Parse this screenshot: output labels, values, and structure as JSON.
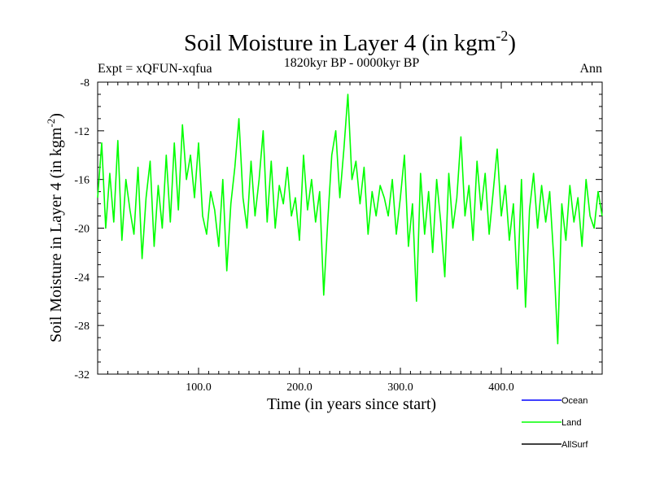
{
  "chart_data": {
    "type": "line",
    "title": "Soil Moisture in Layer 4 (in kgm",
    "title_superscript": "-2",
    "title_suffix": ")",
    "subtitle": "1820kyr BP - 0000kyr BP",
    "experiment_label": "Expt = xQFUN-xqfua",
    "season_label": "Ann",
    "xlabel": "Time (in years since start)",
    "ylabel": "Soil Moisture in Layer 4 (in kgm",
    "ylabel_superscript": "-2",
    "ylabel_suffix": ")",
    "xlim": [
      0,
      500
    ],
    "ylim": [
      -32,
      -8
    ],
    "xticks": [
      100,
      200,
      300,
      400
    ],
    "xtick_labels": [
      "100.0",
      "200.0",
      "300.0",
      "400.0"
    ],
    "yticks": [
      -32,
      -28,
      -24,
      -20,
      -16,
      -12,
      -8
    ],
    "ytick_labels": [
      "-32",
      "-28",
      "-24",
      "-20",
      "-16",
      "-12",
      "-8"
    ],
    "legend_position": "bottom-right",
    "series": [
      {
        "name": "Ocean",
        "color": "#0000ff",
        "x": [],
        "values": []
      },
      {
        "name": "Land",
        "color": "#00ff00",
        "x": [
          0,
          4,
          8,
          12,
          16,
          20,
          24,
          28,
          32,
          36,
          40,
          44,
          48,
          52,
          56,
          60,
          64,
          68,
          72,
          76,
          80,
          84,
          88,
          92,
          96,
          100,
          104,
          108,
          112,
          116,
          120,
          124,
          128,
          132,
          136,
          140,
          144,
          148,
          152,
          156,
          160,
          164,
          168,
          172,
          176,
          180,
          184,
          188,
          192,
          196,
          200,
          204,
          208,
          212,
          216,
          220,
          224,
          228,
          232,
          236,
          240,
          244,
          248,
          252,
          256,
          260,
          264,
          268,
          272,
          276,
          280,
          284,
          288,
          292,
          296,
          300,
          304,
          308,
          312,
          316,
          320,
          324,
          328,
          332,
          336,
          340,
          344,
          348,
          352,
          356,
          360,
          364,
          368,
          372,
          376,
          380,
          384,
          388,
          392,
          396,
          400,
          404,
          408,
          412,
          416,
          420,
          424,
          428,
          432,
          436,
          440,
          444,
          448,
          452,
          456,
          460,
          464,
          468,
          472,
          476,
          480,
          484,
          488,
          492,
          496,
          500
        ],
        "values": [
          -17.5,
          -13.0,
          -20.0,
          -15.5,
          -19.5,
          -12.8,
          -21.0,
          -16.0,
          -18.5,
          -20.5,
          -15.0,
          -22.5,
          -17.5,
          -14.5,
          -21.5,
          -16.5,
          -20.0,
          -14.0,
          -19.5,
          -13.0,
          -18.5,
          -11.5,
          -16.0,
          -14.0,
          -17.5,
          -13.0,
          -19.0,
          -20.5,
          -17.0,
          -18.5,
          -21.5,
          -16.0,
          -23.5,
          -18.0,
          -15.0,
          -11.0,
          -17.5,
          -20.0,
          -14.5,
          -19.0,
          -16.0,
          -12.0,
          -19.5,
          -14.5,
          -20.0,
          -16.5,
          -18.0,
          -15.0,
          -19.0,
          -17.5,
          -21.0,
          -14.0,
          -18.5,
          -16.0,
          -19.5,
          -17.0,
          -25.5,
          -19.5,
          -14.0,
          -12.0,
          -17.5,
          -13.5,
          -9.0,
          -16.0,
          -14.5,
          -18.0,
          -15.0,
          -20.5,
          -17.0,
          -19.0,
          -16.5,
          -17.5,
          -19.0,
          -16.0,
          -20.5,
          -17.5,
          -14.0,
          -21.5,
          -18.0,
          -26.0,
          -15.5,
          -20.5,
          -17.0,
          -22.0,
          -16.0,
          -19.5,
          -24.0,
          -15.5,
          -20.0,
          -17.5,
          -12.5,
          -19.0,
          -16.5,
          -21.0,
          -14.5,
          -18.5,
          -15.5,
          -20.5,
          -17.0,
          -13.5,
          -19.0,
          -16.5,
          -21.0,
          -18.0,
          -25.0,
          -16.0,
          -26.5,
          -18.5,
          -15.5,
          -20.0,
          -16.5,
          -19.5,
          -17.0,
          -22.5,
          -29.5,
          -18.0,
          -21.0,
          -16.5,
          -19.5,
          -17.5,
          -21.5,
          -16.0,
          -19.0,
          -20.0,
          -17.0,
          -19.0
        ]
      },
      {
        "name": "AllSurf",
        "color": "#000000",
        "x": [],
        "values": []
      }
    ]
  }
}
